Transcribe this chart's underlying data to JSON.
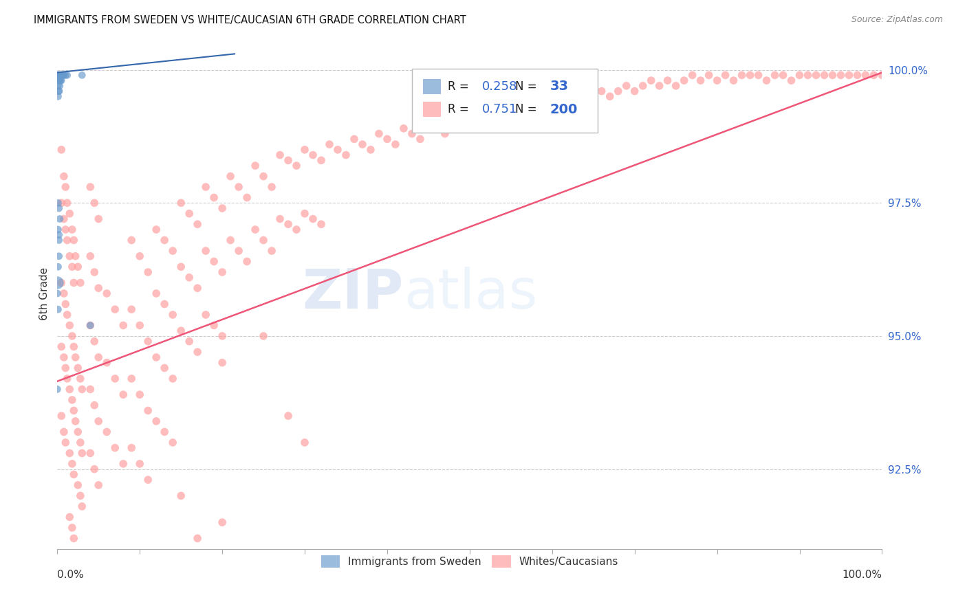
{
  "title": "IMMIGRANTS FROM SWEDEN VS WHITE/CAUCASIAN 6TH GRADE CORRELATION CHART",
  "source": "Source: ZipAtlas.com",
  "ylabel": "6th Grade",
  "ytick_labels": [
    "92.5%",
    "95.0%",
    "97.5%",
    "100.0%"
  ],
  "ytick_values": [
    0.925,
    0.95,
    0.975,
    1.0
  ],
  "legend_blue_R": "0.258",
  "legend_blue_N": "33",
  "legend_pink_R": "0.751",
  "legend_pink_N": "200",
  "legend_label_blue": "Immigrants from Sweden",
  "legend_label_pink": "Whites/Caucasians",
  "blue_color": "#6699CC",
  "pink_color": "#FF9999",
  "blue_line_color": "#3366AA",
  "pink_line_color": "#EE5577",
  "watermark_zip": "ZIP",
  "watermark_atlas": "atlas",
  "xlim": [
    0.0,
    1.0
  ],
  "ylim": [
    0.91,
    1.006
  ],
  "blue_line_x": [
    0.0,
    0.215
  ],
  "blue_line_y": [
    0.9995,
    1.003
  ],
  "pink_line_x": [
    0.0,
    1.0
  ],
  "pink_line_y": [
    0.9415,
    0.9995
  ]
}
